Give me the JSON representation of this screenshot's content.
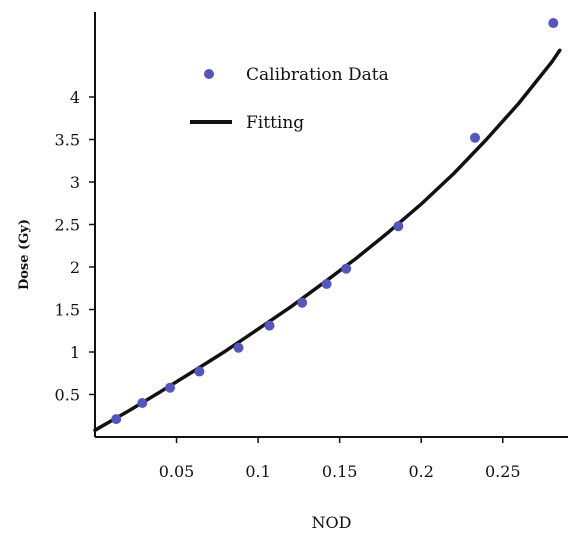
{
  "chart_data": {
    "type": "scatter",
    "title": "",
    "xlabel": "NOD",
    "ylabel": "Dose (Gy)",
    "xlim": [
      0,
      0.29
    ],
    "ylim": [
      0,
      5.0
    ],
    "x_ticks": [
      0.05,
      0.1,
      0.15,
      0.2,
      0.25
    ],
    "x_tick_labels": [
      "0.05",
      "0.1",
      "0.15",
      "0.2",
      "0.25"
    ],
    "y_ticks": [
      0.5,
      1,
      1.5,
      2,
      2.5,
      3,
      3.5,
      4
    ],
    "y_tick_labels": [
      "0.5",
      "1",
      "1.5",
      "2",
      "2.5",
      "3",
      "3.5",
      "4"
    ],
    "grid": false,
    "legend_position": "top-left",
    "series": [
      {
        "name": "Calibration Data",
        "kind": "points",
        "color": "#5555bb",
        "x": [
          0.013,
          0.029,
          0.046,
          0.064,
          0.088,
          0.107,
          0.127,
          0.142,
          0.154,
          0.186,
          0.233,
          0.281
        ],
        "y": [
          0.21,
          0.4,
          0.58,
          0.77,
          1.05,
          1.31,
          1.58,
          1.8,
          1.98,
          2.48,
          3.52,
          4.87
        ]
      },
      {
        "name": "Fitting",
        "kind": "line",
        "color": "#111111",
        "x": [
          0.0,
          0.02,
          0.04,
          0.06,
          0.08,
          0.1,
          0.12,
          0.14,
          0.16,
          0.18,
          0.2,
          0.22,
          0.24,
          0.26,
          0.28,
          0.285
        ],
        "y": [
          0.08,
          0.3,
          0.53,
          0.77,
          1.01,
          1.27,
          1.53,
          1.81,
          2.1,
          2.41,
          2.74,
          3.1,
          3.5,
          3.93,
          4.41,
          4.55
        ]
      }
    ]
  }
}
